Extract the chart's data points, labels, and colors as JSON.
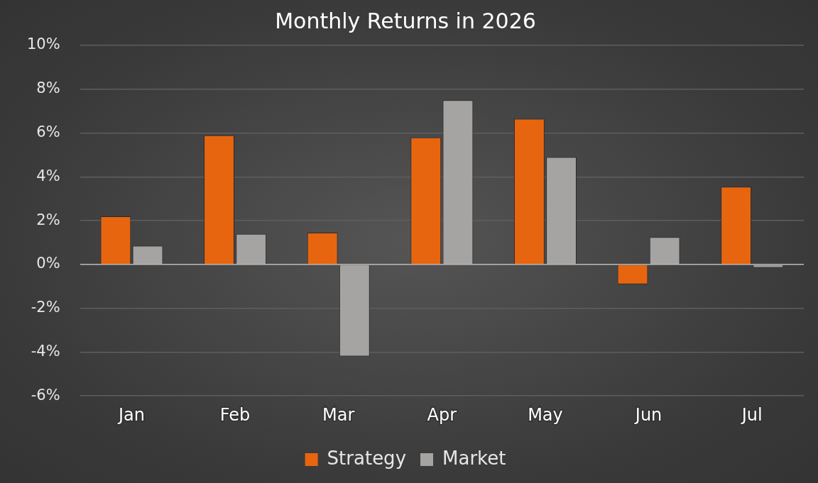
{
  "chart_data": {
    "type": "bar",
    "title": "Monthly Returns in 2026",
    "categories": [
      "Jan",
      "Feb",
      "Mar",
      "Apr",
      "May",
      "Jun",
      "Jul"
    ],
    "series": [
      {
        "name": "Strategy",
        "color": "#e8650f",
        "values": [
          2.2,
          5.9,
          1.45,
          5.8,
          6.65,
          -0.9,
          3.55
        ]
      },
      {
        "name": "Market",
        "color": "#a6a4a2",
        "values": [
          0.85,
          1.4,
          -4.2,
          7.5,
          4.9,
          1.25,
          -0.15
        ]
      }
    ],
    "ylim": [
      -6,
      10
    ],
    "yticks": [
      {
        "value": -6,
        "label": "-6%"
      },
      {
        "value": -4,
        "label": "-4%"
      },
      {
        "value": -2,
        "label": "-2%"
      },
      {
        "value": 0,
        "label": "0%"
      },
      {
        "value": 2,
        "label": "2%"
      },
      {
        "value": 4,
        "label": "4%"
      },
      {
        "value": 6,
        "label": "6%"
      },
      {
        "value": 8,
        "label": "8%"
      },
      {
        "value": 10,
        "label": "10%"
      }
    ],
    "grid": "y",
    "legend": "bottom"
  }
}
